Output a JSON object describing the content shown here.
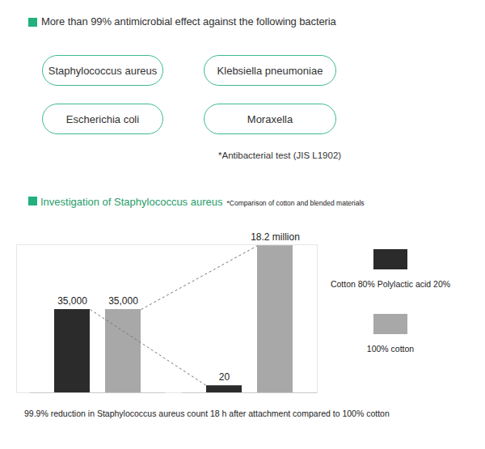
{
  "heading": "More than 99% antimicrobial effect against the following bacteria",
  "bacteria": [
    "Staphylococcus aureus",
    "Klebsiella pneumoniae",
    "Escherichia coli",
    "Moraxella"
  ],
  "footnote": "*Antibacterial test (JIS L1902)",
  "chart_data": {
    "type": "bar",
    "title": "Investigation of Staphylococcus aureus",
    "subtitle": "*Comparison of cotton and blended materials",
    "caption": "99.9% reduction in Staphylococcus aureus count 18 h after attachment compared to 100% cotton",
    "categories": [
      null,
      null
    ],
    "series": [
      {
        "name": "Cotton 80% Polylactic acid 20%",
        "color": "#2b2b2b",
        "values": [
          35000,
          20
        ],
        "value_labels": [
          "35,000",
          "20"
        ]
      },
      {
        "name": "100% cotton",
        "color": "#a8a8a8",
        "values": [
          35000,
          18200000
        ],
        "value_labels": [
          "35,000",
          "18.2 million"
        ]
      }
    ],
    "log": "y",
    "ylim": [
      10,
      20000000
    ],
    "yticks": [],
    "tick_labels": false,
    "grid": false,
    "data_labels": true,
    "legend": "right"
  }
}
